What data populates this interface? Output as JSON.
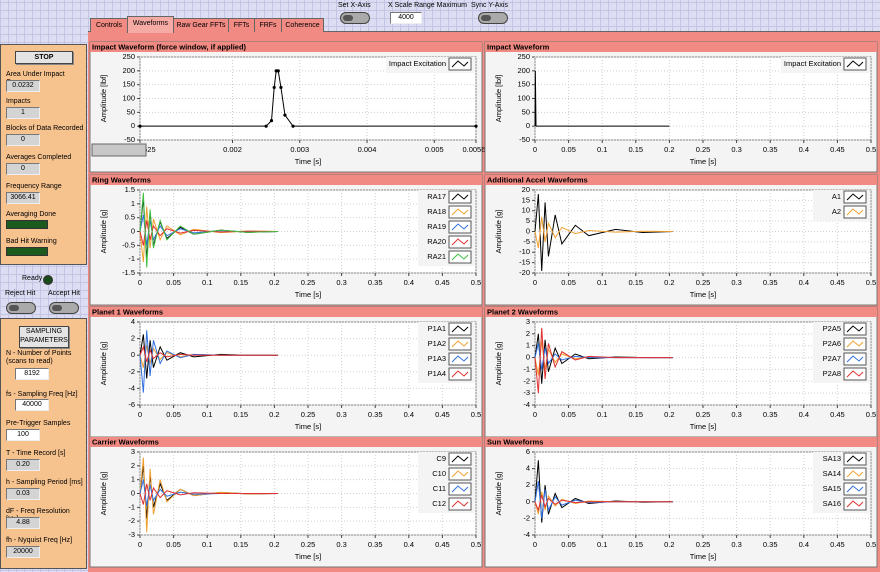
{
  "top_controls": {
    "set_x_axis": "Set X-Axis",
    "x_scale_label": "X Scale Range Maximum",
    "x_scale_value": "4000",
    "sync_y_axis": "Sync Y-Axis"
  },
  "tabs": [
    "Controls",
    "Waveforms",
    "Raw Gear FFTs",
    "FFTs",
    "FRFs",
    "Coherence"
  ],
  "left_panel": {
    "stop": "STOP",
    "indicators": [
      {
        "label": "Area Under Impact Curve",
        "value": "0.0232"
      },
      {
        "label": "Impacts",
        "value": "1"
      },
      {
        "label": "Blocks of Data Recorded",
        "value": "0"
      },
      {
        "label": "Averages Completed",
        "value": "0"
      },
      {
        "label": "Frequency Range",
        "value": "3066.41"
      }
    ],
    "leds": [
      "Averaging Done",
      "Bad Hit Warning"
    ],
    "ready": "Ready",
    "reject": "Reject Hit",
    "accept": "Accept Hit",
    "sampling_title": "SAMPLING PARAMETERS",
    "params": [
      {
        "label": "N - Number of Points (scans to read)",
        "value": "8192"
      },
      {
        "label": "fs - Sampling Freq [Hz]",
        "value": "40000"
      },
      {
        "label": "Pre-Trigger Samples",
        "value": "100"
      },
      {
        "label": "T - Time Record [s]",
        "value": "0.20"
      },
      {
        "label": "h - Sampling Period [ms]",
        "value": "0.03"
      },
      {
        "label": "dF - Freq Resolution [Hz]",
        "value": "4.88"
      },
      {
        "label": "fh - Nyquist Freq [Hz]",
        "value": "20000"
      }
    ]
  },
  "charts": [
    {
      "type": "line",
      "title": "Impact Waveform (force window, if applied)",
      "x_label": "Time [s]",
      "y_label": "Amplitude [lbf]",
      "grid": true,
      "marker": true,
      "xlim": [
        0.000625,
        0.00562
      ],
      "xticks": [
        0.000625,
        0.002,
        0.003,
        0.004,
        0.005,
        0.00562
      ],
      "ylim": [
        -50,
        250
      ],
      "yticks": [
        -50,
        0,
        50,
        100,
        150,
        200,
        250
      ],
      "x": [
        0.000625,
        0.0025,
        0.00258,
        0.00262,
        0.00265,
        0.00268,
        0.00272,
        0.00278,
        0.0029,
        0.00562
      ],
      "series": [
        {
          "name": "Impact Excitation",
          "color": "#000000",
          "values": [
            0,
            0,
            20,
            140,
            200,
            200,
            140,
            40,
            0,
            0
          ]
        }
      ]
    },
    {
      "type": "line",
      "title": "Impact Waveform",
      "x_label": "Time [s]",
      "y_label": "Amplitude [lbf]",
      "grid": true,
      "xlim": [
        0,
        0.5
      ],
      "xticks": [
        0,
        0.05,
        0.1,
        0.15,
        0.2,
        0.25,
        0.3,
        0.35,
        0.4,
        0.45,
        0.5
      ],
      "ylim": [
        -50,
        250
      ],
      "yticks": [
        -50,
        0,
        50,
        100,
        150,
        200,
        250
      ],
      "x": [
        0,
        0.0005,
        0.001,
        0.0015,
        0.2
      ],
      "series": [
        {
          "name": "Impact Excitation",
          "color": "#000000",
          "values": [
            0,
            200,
            100,
            0,
            0
          ]
        }
      ]
    },
    {
      "type": "line",
      "title": "Ring Waveforms",
      "x_label": "Time [s]",
      "y_label": "Amplitude [g]",
      "grid": true,
      "xlim": [
        0,
        0.5
      ],
      "xticks": [
        0,
        0.05,
        0.1,
        0.15,
        0.2,
        0.25,
        0.3,
        0.35,
        0.4,
        0.45,
        0.5
      ],
      "ylim": [
        -1.5,
        1.5
      ],
      "yticks": [
        -1.5,
        -1,
        -0.5,
        0,
        0.5,
        1,
        1.5
      ],
      "x": [
        0,
        0.005,
        0.01,
        0.015,
        0.02,
        0.03,
        0.04,
        0.06,
        0.08,
        0.12,
        0.16,
        0.205
      ],
      "series": [
        {
          "name": "RA17",
          "color": "#000000",
          "values": [
            0,
            1.2,
            -1.0,
            0.7,
            -0.5,
            0.35,
            -0.25,
            0.15,
            -0.1,
            0.05,
            -0.03,
            0
          ]
        },
        {
          "name": "RA18",
          "color": "#f0a030",
          "values": [
            0,
            -1.1,
            0.9,
            -0.6,
            0.45,
            -0.3,
            0.2,
            -0.12,
            0.08,
            -0.04,
            0.02,
            0
          ]
        },
        {
          "name": "RA19",
          "color": "#3070e0",
          "values": [
            0,
            0.6,
            -0.5,
            0.4,
            -0.3,
            0.2,
            -0.15,
            0.1,
            -0.05,
            0.03,
            -0.02,
            0
          ]
        },
        {
          "name": "RA20",
          "color": "#e03030",
          "values": [
            0,
            -0.5,
            0.4,
            -0.3,
            0.2,
            -0.15,
            0.1,
            -0.06,
            0.04,
            -0.02,
            0.01,
            0
          ]
        },
        {
          "name": "RA21",
          "color": "#40c040",
          "values": [
            0,
            1.4,
            -1.3,
            0.8,
            -0.6,
            0.4,
            -0.3,
            0.2,
            -0.1,
            0.05,
            -0.03,
            0
          ]
        }
      ]
    },
    {
      "type": "line",
      "title": "Additional Accel Waveforms",
      "x_label": "Time [s]",
      "y_label": "Amplitude [g]",
      "grid": true,
      "xlim": [
        0,
        0.5
      ],
      "xticks": [
        0,
        0.05,
        0.1,
        0.15,
        0.2,
        0.25,
        0.3,
        0.35,
        0.4,
        0.45,
        0.5
      ],
      "ylim": [
        -20,
        20
      ],
      "yticks": [
        -20,
        -15,
        -10,
        -5,
        0,
        5,
        10,
        15,
        20
      ],
      "x": [
        0,
        0.005,
        0.01,
        0.015,
        0.02,
        0.03,
        0.04,
        0.06,
        0.08,
        0.12,
        0.16,
        0.205
      ],
      "series": [
        {
          "name": "A1",
          "color": "#000000",
          "values": [
            0,
            18,
            -19,
            14,
            -12,
            8,
            -6,
            3,
            -2,
            1,
            -0.5,
            0
          ]
        },
        {
          "name": "A2",
          "color": "#f0a030",
          "values": [
            0,
            -8,
            7,
            -5,
            4,
            -3,
            2,
            -1,
            0.5,
            -0.3,
            0.1,
            0
          ]
        }
      ]
    },
    {
      "type": "line",
      "title": "Planet 1 Waveforms",
      "x_label": "Time [s]",
      "y_label": "Amplitude [g]",
      "grid": true,
      "xlim": [
        0,
        0.5
      ],
      "xticks": [
        0,
        0.05,
        0.1,
        0.15,
        0.2,
        0.25,
        0.3,
        0.35,
        0.4,
        0.45,
        0.5
      ],
      "ylim": [
        -6,
        4
      ],
      "yticks": [
        -6,
        -4,
        -2,
        0,
        2,
        4
      ],
      "x": [
        0,
        0.005,
        0.01,
        0.015,
        0.02,
        0.03,
        0.04,
        0.06,
        0.08,
        0.12,
        0.16,
        0.205
      ],
      "series": [
        {
          "name": "P1A1",
          "color": "#000000",
          "values": [
            0,
            2.5,
            -2.8,
            1.8,
            -1.5,
            1,
            -0.6,
            0.3,
            -0.2,
            0.1,
            0,
            0
          ]
        },
        {
          "name": "P1A2",
          "color": "#f0a030",
          "values": [
            0,
            -1.5,
            1.2,
            -1,
            0.8,
            -0.5,
            0.3,
            -0.2,
            0.1,
            0,
            0,
            0
          ]
        },
        {
          "name": "P1A3",
          "color": "#3070e0",
          "values": [
            0,
            -4.5,
            3,
            -2.5,
            1.8,
            -1,
            0.5,
            -0.3,
            0.1,
            0,
            0,
            0
          ]
        },
        {
          "name": "P1A4",
          "color": "#e03030",
          "values": [
            0,
            1,
            -0.8,
            0.6,
            -0.4,
            0.3,
            -0.2,
            0.1,
            0,
            0,
            0,
            0
          ]
        }
      ]
    },
    {
      "type": "line",
      "title": "Planet 2 Waveforms",
      "x_label": "Time [s]",
      "y_label": "Amplitude [g]",
      "grid": true,
      "xlim": [
        0,
        0.5
      ],
      "xticks": [
        0,
        0.05,
        0.1,
        0.15,
        0.2,
        0.25,
        0.3,
        0.35,
        0.4,
        0.45,
        0.5
      ],
      "ylim": [
        -4,
        3
      ],
      "yticks": [
        -4,
        -3,
        -2,
        -1,
        0,
        1,
        2,
        3
      ],
      "x": [
        0,
        0.005,
        0.01,
        0.015,
        0.02,
        0.03,
        0.04,
        0.06,
        0.08,
        0.12,
        0.16,
        0.205
      ],
      "series": [
        {
          "name": "P2A5",
          "color": "#000000",
          "values": [
            0,
            2,
            -2.2,
            1.5,
            -1.2,
            0.8,
            -0.5,
            0.3,
            -0.1,
            0.05,
            0,
            0
          ]
        },
        {
          "name": "P2A6",
          "color": "#f0a030",
          "values": [
            0,
            -1.5,
            1.4,
            -1,
            0.7,
            -0.4,
            0.3,
            -0.1,
            0.05,
            0,
            0,
            0
          ]
        },
        {
          "name": "P2A7",
          "color": "#3070e0",
          "values": [
            0,
            1.2,
            -1,
            0.8,
            -0.5,
            0.3,
            -0.2,
            0.1,
            0,
            0,
            0,
            0
          ]
        },
        {
          "name": "P2A8",
          "color": "#e03030",
          "values": [
            0,
            -3,
            2.5,
            -1.8,
            1.2,
            -0.8,
            0.5,
            -0.2,
            0.1,
            0,
            0,
            0
          ]
        }
      ]
    },
    {
      "type": "line",
      "title": "Carrier Waveforms",
      "x_label": "Time [s]",
      "y_label": "Amplitude [g]",
      "grid": true,
      "xlim": [
        0,
        0.5
      ],
      "xticks": [
        0,
        0.05,
        0.1,
        0.15,
        0.2,
        0.25,
        0.3,
        0.35,
        0.4,
        0.45,
        0.5
      ],
      "ylim": [
        -3,
        3
      ],
      "yticks": [
        -3,
        -2,
        -1,
        0,
        1,
        2,
        3
      ],
      "x": [
        0,
        0.005,
        0.01,
        0.015,
        0.02,
        0.03,
        0.04,
        0.06,
        0.08,
        0.12,
        0.16,
        0.205
      ],
      "series": [
        {
          "name": "C9",
          "color": "#000000",
          "values": [
            0,
            2,
            -1.8,
            1.3,
            -1,
            0.7,
            -0.5,
            0.3,
            -0.15,
            0.08,
            -0.03,
            0
          ]
        },
        {
          "name": "C10",
          "color": "#f0a030",
          "values": [
            0,
            2.6,
            -2.8,
            1.8,
            -1.5,
            1,
            -0.6,
            0.3,
            -0.15,
            0.08,
            -0.03,
            0
          ]
        },
        {
          "name": "C11",
          "color": "#3070e0",
          "values": [
            0,
            1,
            -0.9,
            0.6,
            -0.5,
            0.3,
            -0.2,
            0.1,
            -0.05,
            0,
            0,
            0
          ]
        },
        {
          "name": "C12",
          "color": "#e03030",
          "values": [
            0,
            -0.8,
            0.7,
            -0.5,
            0.4,
            -0.3,
            0.2,
            -0.1,
            0.05,
            0,
            0,
            0
          ]
        }
      ]
    },
    {
      "type": "line",
      "title": "Sun Waveforms",
      "x_label": "Time [s]",
      "y_label": "Amplitude [g]",
      "grid": true,
      "xlim": [
        0,
        0.5
      ],
      "xticks": [
        0,
        0.05,
        0.1,
        0.15,
        0.2,
        0.25,
        0.3,
        0.35,
        0.4,
        0.45,
        0.5
      ],
      "ylim": [
        -4,
        6
      ],
      "yticks": [
        -4,
        -2,
        0,
        2,
        4,
        6
      ],
      "x": [
        0,
        0.005,
        0.01,
        0.015,
        0.02,
        0.03,
        0.04,
        0.06,
        0.08,
        0.12,
        0.16,
        0.205
      ],
      "series": [
        {
          "name": "SA13",
          "color": "#000000",
          "values": [
            0,
            5,
            -2.5,
            2,
            -1.5,
            1,
            -0.7,
            0.4,
            -0.2,
            0.1,
            -0.05,
            0
          ]
        },
        {
          "name": "SA14",
          "color": "#f0a030",
          "values": [
            0,
            -1.5,
            1.2,
            -1,
            0.7,
            -0.5,
            0.3,
            -0.2,
            0.1,
            0,
            0,
            0
          ]
        },
        {
          "name": "SA15",
          "color": "#3070e0",
          "values": [
            0,
            2.5,
            -2,
            1.5,
            -1,
            0.6,
            -0.4,
            0.2,
            -0.1,
            0,
            0,
            0
          ]
        },
        {
          "name": "SA16",
          "color": "#e03030",
          "values": [
            0,
            -1,
            0.8,
            -0.6,
            0.4,
            -0.3,
            0.2,
            -0.1,
            0,
            0,
            0,
            0
          ]
        }
      ]
    }
  ]
}
